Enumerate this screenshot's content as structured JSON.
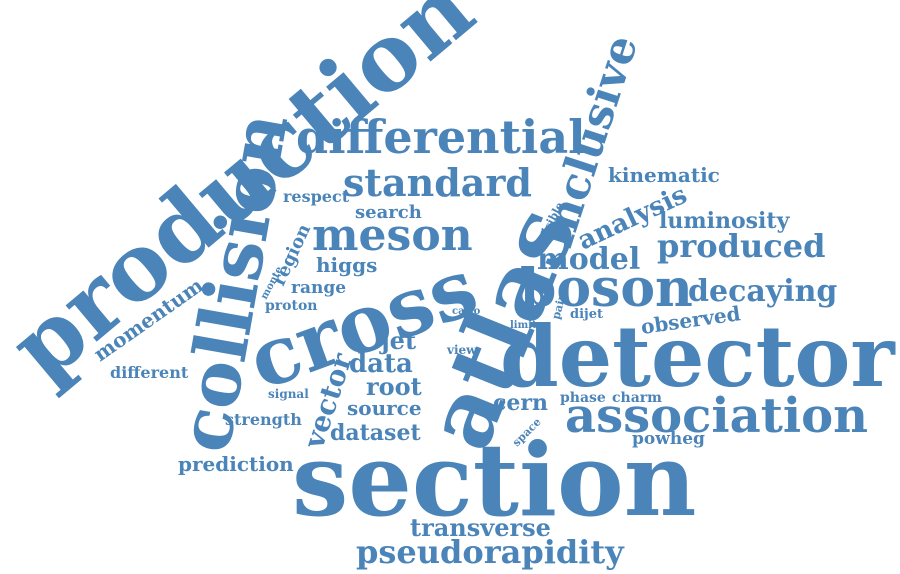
{
  "color": "#4a84b8",
  "words": {
    "production": "production",
    "section": "section",
    "detector": "detector",
    "atlas": "atlas",
    "cross": "cross",
    "collision": "collision",
    "association": "association",
    "differential": "differential",
    "boson": "boson",
    "inclusive": "inclusive",
    "meson": "meson",
    "standard": "standard",
    "pseudorapidity": "pseudorapidity",
    "produced": "produced",
    "decaying": "decaying",
    "model": "model",
    "analysis": "analysis",
    "luminosity": "luminosity",
    "kinematic": "kinematic",
    "momentum": "momentum",
    "transverse": "transverse",
    "vector": "vector",
    "data": "data",
    "root": "root",
    "dataset": "dataset",
    "source": "source",
    "cern": "cern",
    "jet": "jet",
    "observed": "observed",
    "prediction": "prediction",
    "higgs": "higgs",
    "search": "search",
    "region": "region",
    "respect": "respect",
    "different": "different",
    "strength": "strength",
    "range": "range",
    "proton": "proton",
    "powheg": "powheg",
    "phase": "phase",
    "charm": "charm",
    "dijet": "dijet",
    "pair": "pair",
    "limit": "limit",
    "carlo": "carlo",
    "monte": "monte",
    "signal": "signal",
    "view": "view",
    "visible": "visible",
    "space": "space"
  }
}
